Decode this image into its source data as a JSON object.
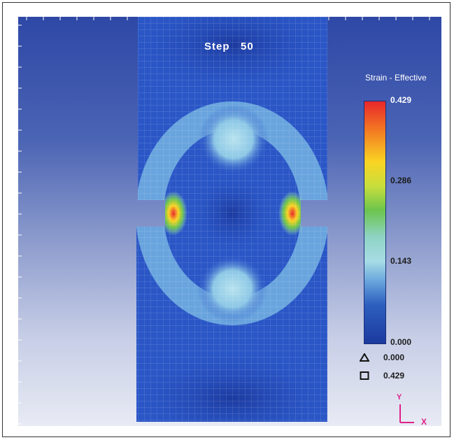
{
  "step": {
    "label": "Step",
    "number": "50"
  },
  "legend": {
    "title": "Strain - Effective",
    "ticks": [
      "0.429",
      "0.286",
      "0.143",
      "0.000"
    ]
  },
  "markers": {
    "min": {
      "symbol": "triangle-icon",
      "value": "0.000"
    },
    "max": {
      "symbol": "square-icon",
      "value": "0.429"
    }
  },
  "axes": {
    "y": "Y",
    "x": "X",
    "color": "#e0208a"
  },
  "colors": {
    "background_top": "#2e48a6",
    "background_bottom": "#e8ebf4",
    "mesh_base": "#2a56c6",
    "strain_low": "#1b3a9e",
    "strain_high": "#e8272b"
  }
}
